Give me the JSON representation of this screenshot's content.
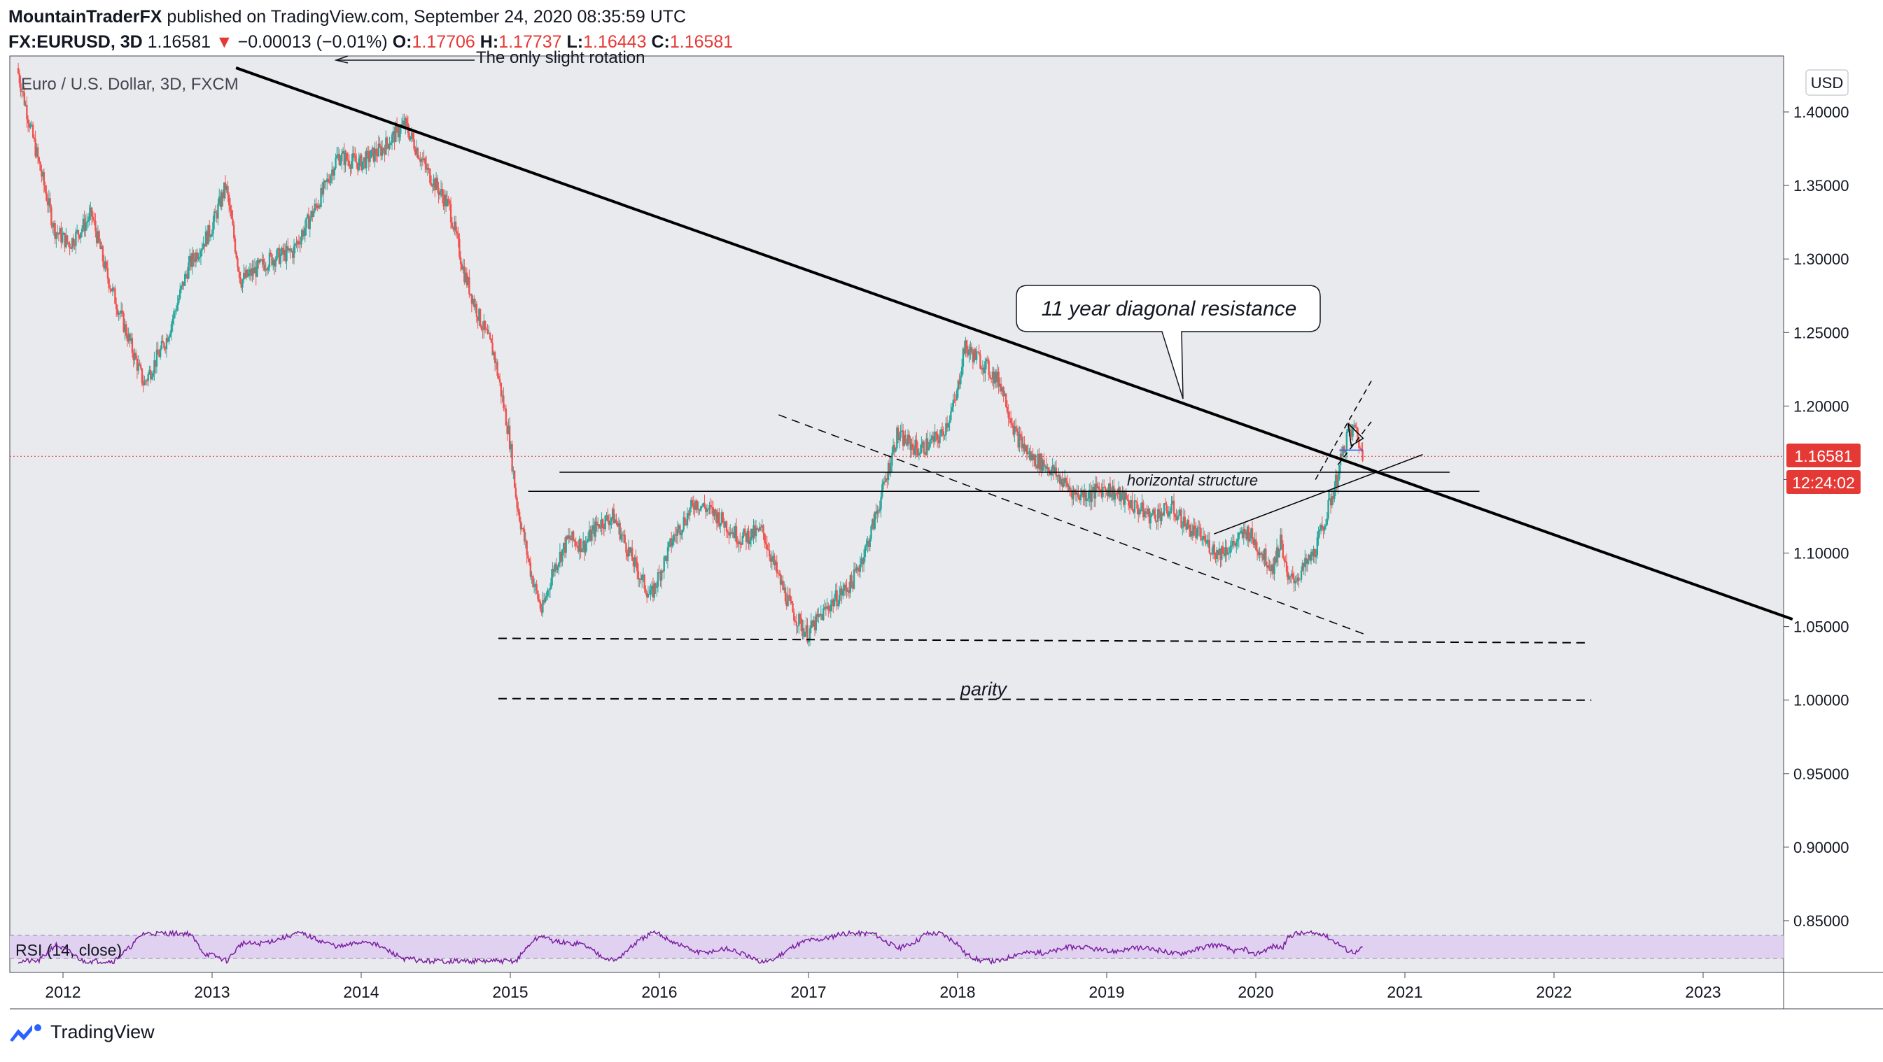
{
  "header": {
    "author": "MountainTraderFX",
    "published_text": "published on TradingView.com, September 24, 2020 08:35:59 UTC",
    "symbol": "FX:EURUSD, 3D",
    "last": "1.16581",
    "change_arrow": "▼",
    "change": "−0.00013 (−0.01%)",
    "open_label": "O:",
    "open": "1.17706",
    "high_label": "H:",
    "high": "1.17737",
    "low_label": "L:",
    "low": "1.16443",
    "close_label": "C:",
    "close": "1.16581"
  },
  "chart_title": "Euro / U.S. Dollar, 3D, FXCM",
  "currency_button": "USD",
  "price_badge": "1.16581",
  "timer_badge": "12:24:02",
  "rsi_label": "RSI (14, close)",
  "annotations": {
    "callout": "11 year diagonal resistance",
    "horizontal": "horizontal structure",
    "parity": "parity",
    "top_fragment": "The only slight rotation"
  },
  "footer_logo": "TradingView",
  "colors": {
    "up": "#26a69a",
    "down": "#ef5350",
    "badge": "#e53935",
    "rsi": "#7b1fa2",
    "rsi_band": "#e1d1f0",
    "background": "#e9eaee"
  },
  "chart_data": {
    "type": "candlestick",
    "title": "Euro / U.S. Dollar, 3D, FXCM",
    "currency": "USD",
    "ylim": [
      0.84,
      1.43
    ],
    "y_ticks": [
      "1.40000",
      "1.35000",
      "1.30000",
      "1.25000",
      "1.20000",
      "1.15000",
      "1.10000",
      "1.05000",
      "1.00000",
      "0.95000",
      "0.90000",
      "0.85000"
    ],
    "x_ticks": [
      "2012",
      "2013",
      "2014",
      "2015",
      "2016",
      "2017",
      "2018",
      "2019",
      "2020",
      "2021",
      "2022",
      "2023"
    ],
    "last_price": 1.16581,
    "price_path": [
      [
        2011.7,
        1.43
      ],
      [
        2011.8,
        1.385
      ],
      [
        2011.95,
        1.32
      ],
      [
        2012.05,
        1.31
      ],
      [
        2012.2,
        1.33
      ],
      [
        2012.3,
        1.29
      ],
      [
        2012.4,
        1.26
      ],
      [
        2012.55,
        1.215
      ],
      [
        2012.7,
        1.245
      ],
      [
        2012.85,
        1.295
      ],
      [
        2013.0,
        1.32
      ],
      [
        2013.1,
        1.35
      ],
      [
        2013.2,
        1.285
      ],
      [
        2013.4,
        1.3
      ],
      [
        2013.55,
        1.305
      ],
      [
        2013.75,
        1.345
      ],
      [
        2013.85,
        1.37
      ],
      [
        2014.0,
        1.365
      ],
      [
        2014.15,
        1.375
      ],
      [
        2014.3,
        1.392
      ],
      [
        2014.45,
        1.36
      ],
      [
        2014.6,
        1.335
      ],
      [
        2014.7,
        1.29
      ],
      [
        2014.8,
        1.26
      ],
      [
        2014.9,
        1.235
      ],
      [
        2015.0,
        1.18
      ],
      [
        2015.05,
        1.135
      ],
      [
        2015.15,
        1.085
      ],
      [
        2015.22,
        1.06
      ],
      [
        2015.3,
        1.09
      ],
      [
        2015.4,
        1.11
      ],
      [
        2015.5,
        1.105
      ],
      [
        2015.6,
        1.12
      ],
      [
        2015.7,
        1.125
      ],
      [
        2015.85,
        1.09
      ],
      [
        2015.95,
        1.07
      ],
      [
        2016.1,
        1.11
      ],
      [
        2016.25,
        1.135
      ],
      [
        2016.4,
        1.125
      ],
      [
        2016.55,
        1.11
      ],
      [
        2016.7,
        1.115
      ],
      [
        2016.8,
        1.085
      ],
      [
        2016.9,
        1.06
      ],
      [
        2017.0,
        1.045
      ],
      [
        2017.15,
        1.065
      ],
      [
        2017.3,
        1.08
      ],
      [
        2017.4,
        1.105
      ],
      [
        2017.5,
        1.14
      ],
      [
        2017.6,
        1.18
      ],
      [
        2017.75,
        1.17
      ],
      [
        2017.9,
        1.18
      ],
      [
        2018.0,
        1.205
      ],
      [
        2018.05,
        1.24
      ],
      [
        2018.15,
        1.232
      ],
      [
        2018.3,
        1.215
      ],
      [
        2018.4,
        1.18
      ],
      [
        2018.5,
        1.165
      ],
      [
        2018.6,
        1.16
      ],
      [
        2018.7,
        1.15
      ],
      [
        2018.8,
        1.14
      ],
      [
        2018.9,
        1.14
      ],
      [
        2019.0,
        1.145
      ],
      [
        2019.15,
        1.135
      ],
      [
        2019.3,
        1.125
      ],
      [
        2019.45,
        1.13
      ],
      [
        2019.55,
        1.118
      ],
      [
        2019.65,
        1.11
      ],
      [
        2019.75,
        1.1
      ],
      [
        2019.85,
        1.105
      ],
      [
        2019.95,
        1.115
      ],
      [
        2020.05,
        1.1
      ],
      [
        2020.12,
        1.09
      ],
      [
        2020.18,
        1.11
      ],
      [
        2020.22,
        1.08
      ],
      [
        2020.3,
        1.085
      ],
      [
        2020.4,
        1.1
      ],
      [
        2020.48,
        1.125
      ],
      [
        2020.55,
        1.15
      ],
      [
        2020.62,
        1.18
      ],
      [
        2020.68,
        1.185
      ],
      [
        2020.72,
        1.16581
      ]
    ],
    "rsi_series_name": "RSI (14, close)"
  }
}
